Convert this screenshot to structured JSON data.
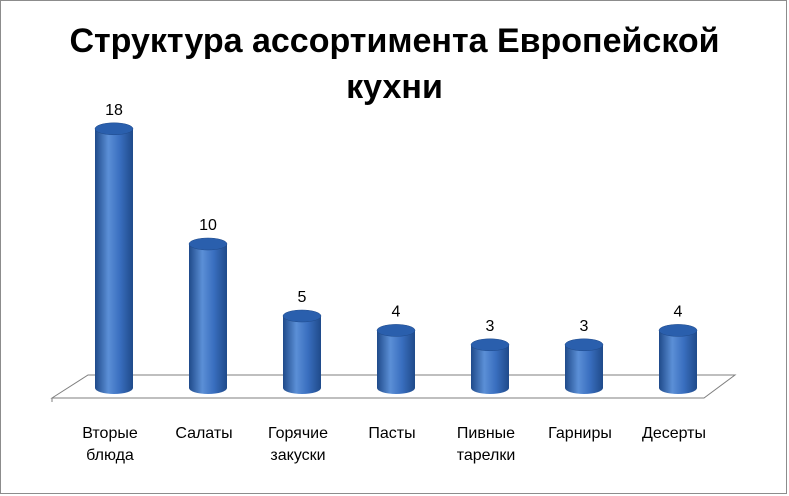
{
  "chart_data": {
    "type": "bar",
    "style": "3d-cylinder",
    "title": "Структура ассортимента Европейской кухни",
    "categories": [
      [
        "Вторые",
        "блюда"
      ],
      [
        "Салаты"
      ],
      [
        "Горячие",
        "закуски"
      ],
      [
        "Пасты"
      ],
      [
        "Пивные",
        "тарелки"
      ],
      [
        "Гарниры"
      ],
      [
        "Десерты"
      ]
    ],
    "series": [
      {
        "values": [
          18,
          10,
          5,
          4,
          3,
          3,
          4
        ]
      }
    ],
    "ylim": [
      0,
      20
    ],
    "grid": false,
    "legend": "none",
    "data_labels": true,
    "colors": {
      "bar_light": "#5b8fd6",
      "bar_mid": "#3a6fc0",
      "bar_dark": "#1f4a8a",
      "bar_top": "#2a5fad",
      "floor_line": "#7f7f7f",
      "text": "#000000"
    }
  }
}
